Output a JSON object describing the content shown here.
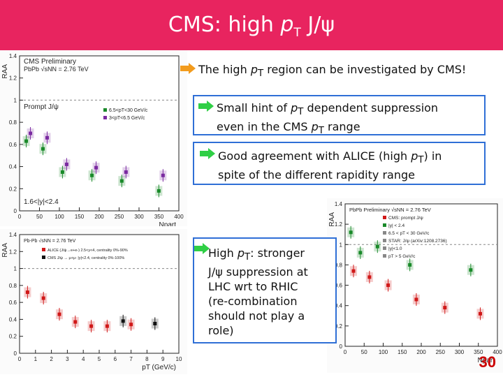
{
  "slide": {
    "title_prefix": "CMS: high ",
    "title_p": "p",
    "title_sub": "T",
    "title_suffix": " J/ψ",
    "page_number": "30"
  },
  "callouts": {
    "c0_a": "The high ",
    "c0_p": "p",
    "c0_sub": "T",
    "c0_b": " region can be investigated by CMS!",
    "c1_l1a": "Small hint of ",
    "c1_p": "p",
    "c1_sub": "T",
    "c1_l1b": " dependent suppression",
    "c1_l2a": "even in the CMS ",
    "c1_p2": "p",
    "c1_sub2": "T",
    "c1_l2b": " range",
    "c2_l1a": "Good agreement with ALICE (high ",
    "c2_p": "p",
    "c2_sub": "T",
    "c2_l1b": ") in",
    "c2_l2": "spite of the different rapidity range",
    "c3_l1a": "High ",
    "c3_p": "p",
    "c3_sub": "T",
    "c3_l1b": ": stronger",
    "c3_l2": "J/ψ suppression at",
    "c3_l3": "LHC wrt to RHIC",
    "c3_l4": "(re-combination",
    "c3_l5": "should not play a",
    "c3_l6": "role)"
  },
  "chart_data": [
    {
      "type": "scatter",
      "title": "CMS Preliminary",
      "subtitle": "PbPb √sNN = 2.76 TeV",
      "label": "Prompt J/ψ",
      "xlabel": "Npart",
      "ylabel": "RAA",
      "xlim": [
        0,
        400
      ],
      "ylim": [
        0,
        1.4
      ],
      "xticks": [
        "0",
        "50",
        "100",
        "150",
        "200",
        "250",
        "300",
        "350",
        "400"
      ],
      "yticks": [
        "0",
        "0.2",
        "0.4",
        "0.6",
        "0.8",
        "1",
        "1.2",
        "1.4"
      ],
      "annotation": "1.6<|y|<2.4",
      "series": [
        {
          "name": "6.5<pT<30 GeV/c",
          "color": "#1a8a2a",
          "x": [
            22,
            64,
            113,
            187,
            262,
            355
          ],
          "y": [
            0.63,
            0.56,
            0.35,
            0.32,
            0.27,
            0.18
          ]
        },
        {
          "name": "3<pT<6.5 GeV/c",
          "color": "#7a2aa0",
          "x": [
            22,
            64,
            113,
            187,
            262,
            355
          ],
          "y": [
            0.7,
            0.66,
            0.42,
            0.39,
            0.35,
            0.32
          ]
        }
      ]
    },
    {
      "type": "scatter",
      "title": "Pb-Pb √sNN = 2.76 TeV",
      "xlabel": "pT (GeV/c)",
      "ylabel": "RAA",
      "xlim": [
        0,
        10
      ],
      "ylim": [
        0,
        1.4
      ],
      "xticks": [
        "0",
        "1",
        "2",
        "3",
        "4",
        "5",
        "6",
        "7",
        "8",
        "9",
        "10"
      ],
      "yticks": [
        "0",
        "0.2",
        "0.4",
        "0.6",
        "0.8",
        "1",
        "1.2",
        "1.4"
      ],
      "legend": [
        "ALICE (J/ψ→e+e-) 2.5<y<4, centrality 0%-90%",
        "CMS J/ψ → μ+μ- |y|<2.4, centrality 0%-100%"
      ],
      "series": [
        {
          "name": "ALICE",
          "color": "#d01818",
          "x": [
            0.5,
            1.5,
            2.5,
            3.5,
            4.5,
            5.5,
            7.0
          ],
          "y": [
            0.72,
            0.65,
            0.46,
            0.37,
            0.32,
            0.32,
            0.34
          ]
        },
        {
          "name": "CMS",
          "color": "#111111",
          "x": [
            6.5,
            8.5
          ],
          "y": [
            0.38,
            0.35
          ]
        }
      ]
    },
    {
      "type": "scatter",
      "title": "PbPb Preliminary √sNN = 2.76 TeV",
      "xlabel": "Npart",
      "ylabel": "RAA",
      "xlim": [
        0,
        400
      ],
      "ylim": [
        0,
        1.4
      ],
      "xticks": [
        "0",
        "50",
        "100",
        "150",
        "200",
        "250",
        "300",
        "350",
        "400"
      ],
      "yticks": [
        "0",
        "0.2",
        "0.4",
        "0.6",
        "0.8",
        "1",
        "1.2",
        "1.4"
      ],
      "legend": [
        "CMS: prompt J/ψ",
        "|y| < 2.4",
        "6.5 < pT < 30 GeV/c",
        "STAR: J/ψ (arXiv:1208.2736)",
        "|y|<1.0",
        "pT > 5 GeV/c"
      ],
      "series": [
        {
          "name": "CMS",
          "color": "#d01818",
          "x": [
            22,
            64,
            113,
            187,
            262,
            355
          ],
          "y": [
            0.74,
            0.68,
            0.6,
            0.46,
            0.38,
            0.32
          ]
        },
        {
          "name": "STAR",
          "color": "#1a8a2a",
          "x": [
            15,
            40,
            85,
            170,
            330
          ],
          "y": [
            1.12,
            0.92,
            0.98,
            0.8,
            0.75
          ]
        }
      ]
    }
  ]
}
